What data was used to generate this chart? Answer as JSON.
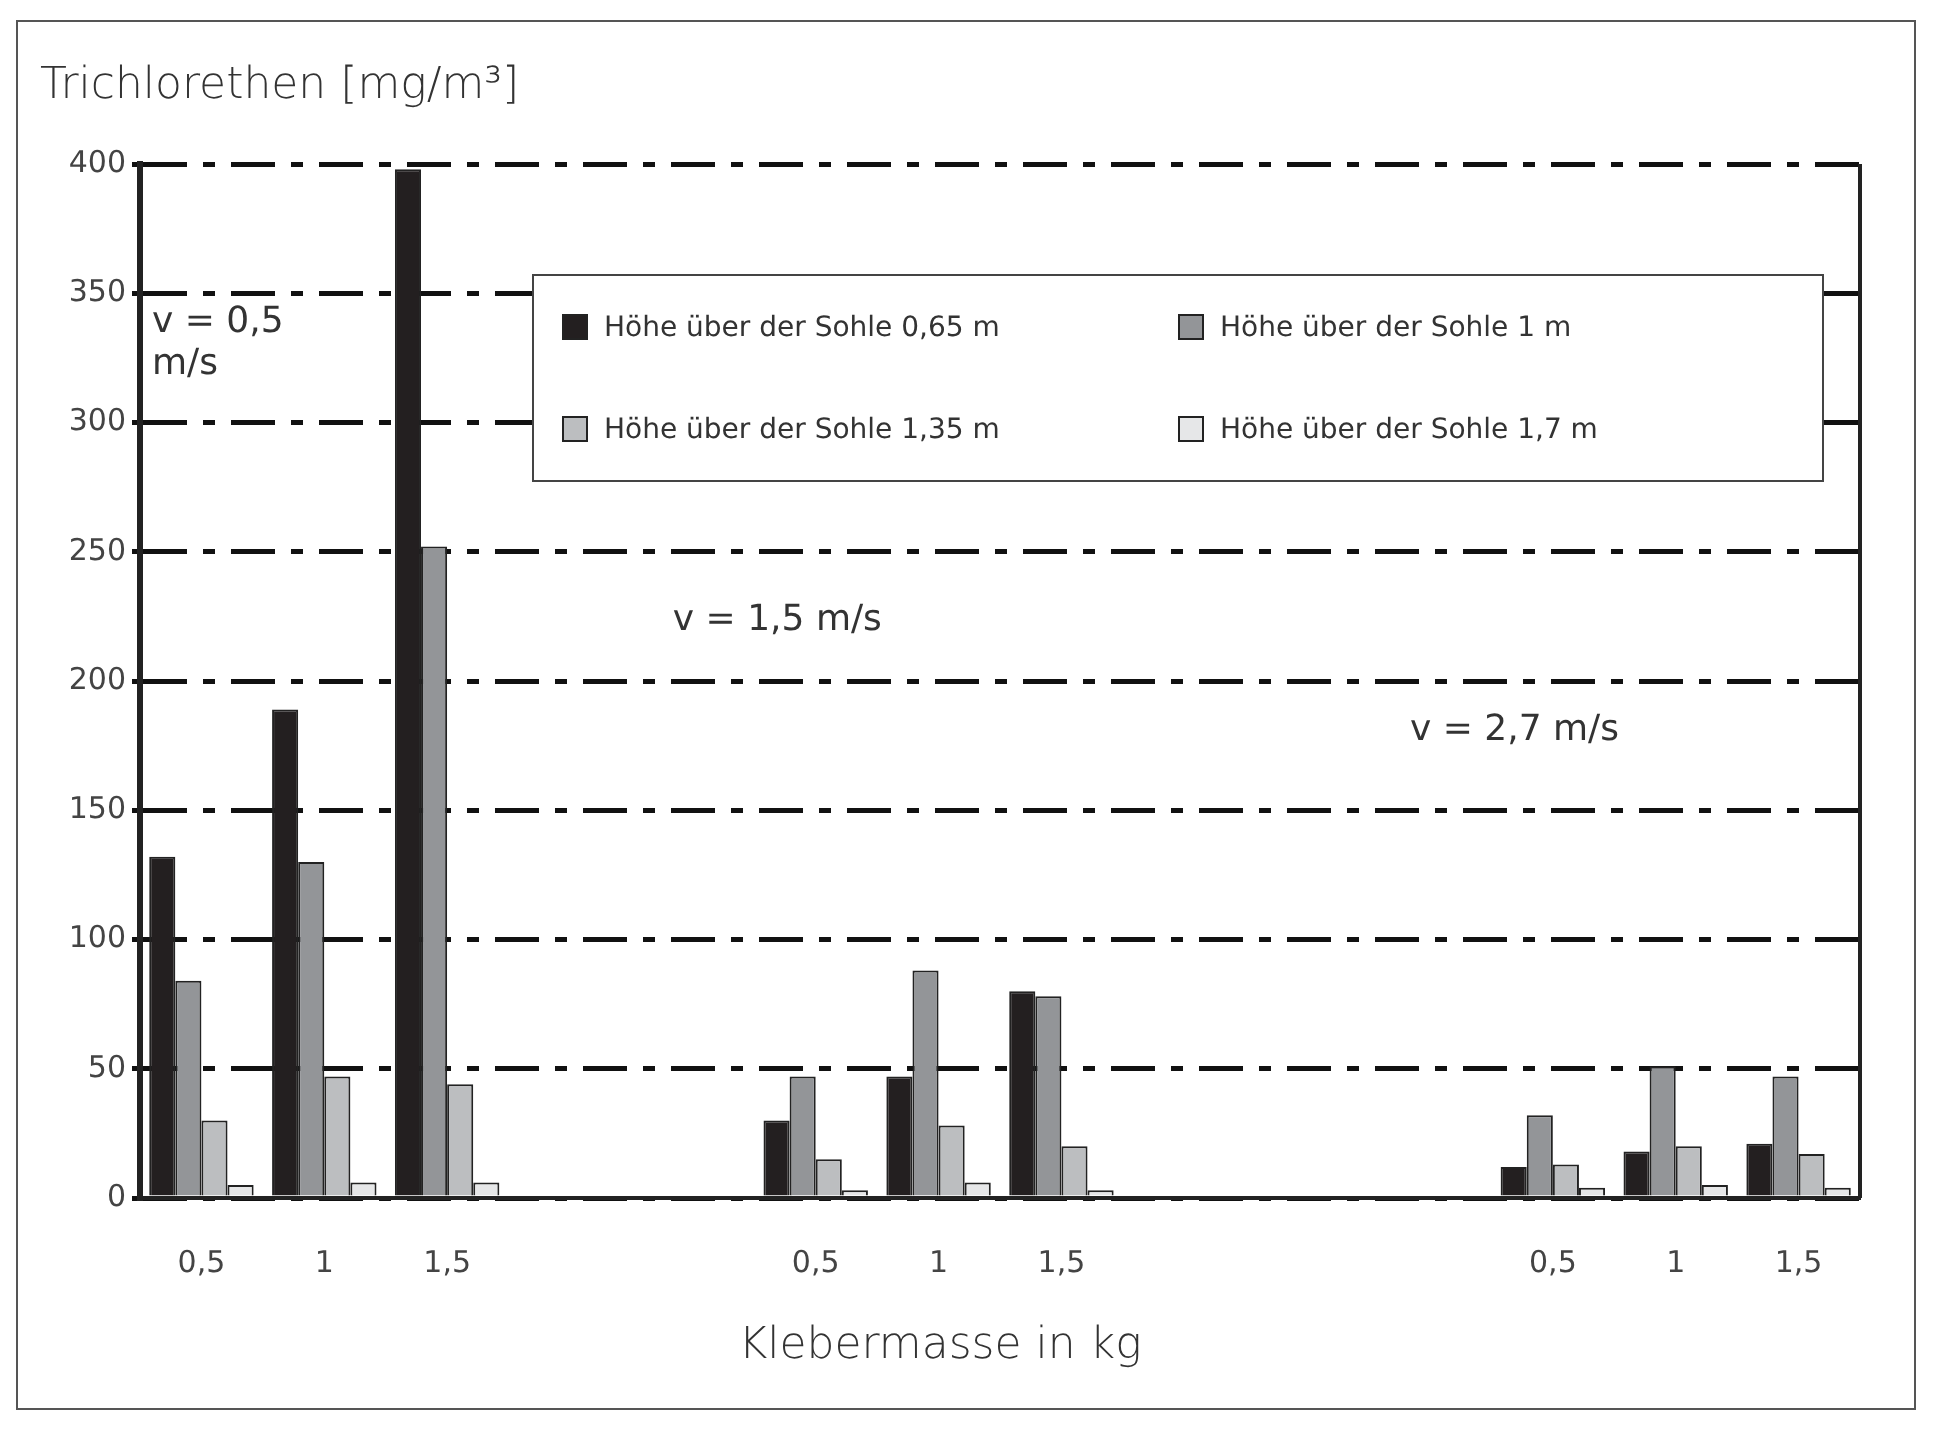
{
  "chart_data": {
    "type": "bar",
    "ylabel": "Trichlorethen  [mg/m³]",
    "xlabel": "Klebermasse in kg",
    "categories": [
      "0,5",
      "1",
      "1,5",
      null,
      null,
      "0,5",
      "1",
      "1,5",
      null,
      null,
      null,
      "0,5",
      "1",
      "1,5"
    ],
    "series": [
      {
        "name": "Höhe über der Sohle 0,65 m",
        "color": "#231f20",
        "values": [
          132,
          189,
          398,
          null,
          null,
          30,
          47,
          80,
          null,
          null,
          null,
          12,
          18,
          21
        ]
      },
      {
        "name": "Höhe über der Sohle 1 m",
        "color": "#939598",
        "values": [
          84,
          130,
          252,
          null,
          null,
          47,
          88,
          78,
          null,
          null,
          null,
          32,
          51,
          47
        ]
      },
      {
        "name": "Höhe über der Sohle 1,35 m",
        "color": "#bcbec0",
        "values": [
          30,
          47,
          44,
          null,
          null,
          15,
          28,
          20,
          null,
          null,
          null,
          13,
          20,
          17
        ]
      },
      {
        "name": "Höhe über der Sohle 1,7 m",
        "color": "#e6e7e8",
        "values": [
          5,
          6,
          6,
          null,
          null,
          3,
          6,
          3,
          null,
          null,
          null,
          4,
          5,
          4
        ]
      }
    ],
    "ylim": [
      0,
      400
    ],
    "yticks": [
      0,
      50,
      100,
      150,
      200,
      250,
      300,
      350,
      400
    ],
    "grid": "y",
    "legend": "top right",
    "annotations": [
      "v = 0,5 m/s",
      "v = 1,5 m/s",
      "v = 2,7 m/s"
    ]
  }
}
